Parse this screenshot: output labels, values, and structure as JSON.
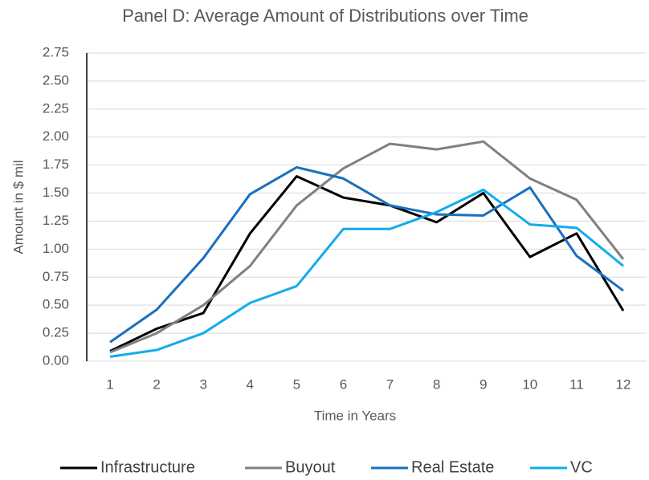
{
  "chart_data": {
    "type": "line",
    "title": "Panel D: Average Amount of Distributions over Time",
    "x_label": "Time in Years",
    "y_label": "Amount in $ mil",
    "x": [
      1,
      2,
      3,
      4,
      5,
      6,
      7,
      8,
      9,
      10,
      11,
      12
    ],
    "xlim": [
      0.5,
      12.5
    ],
    "xticks": [
      1,
      2,
      3,
      4,
      5,
      6,
      7,
      8,
      9,
      10,
      11,
      12
    ],
    "ylim": [
      0,
      2.75
    ],
    "yticks": [
      {
        "value": 0,
        "label": "0.00"
      },
      {
        "value": 0.25,
        "label": "0.25"
      },
      {
        "value": 0.5,
        "label": "0.50"
      },
      {
        "value": 0.75,
        "label": "0.75"
      },
      {
        "value": 1,
        "label": "1.00"
      },
      {
        "value": 1.25,
        "label": "1.25"
      },
      {
        "value": 1.5,
        "label": "1.50"
      },
      {
        "value": 1.75,
        "label": "1.75"
      },
      {
        "value": 2,
        "label": "2.00"
      },
      {
        "value": 2.25,
        "label": "2.25"
      },
      {
        "value": 2.5,
        "label": "2.50"
      },
      {
        "value": 2.75,
        "label": "2.75"
      }
    ],
    "grid": true,
    "legend": "bottom",
    "series": [
      {
        "name": "Infrastructure",
        "color": "#000000",
        "values": [
          0.09,
          0.29,
          0.43,
          1.14,
          1.65,
          1.46,
          1.39,
          1.24,
          1.5,
          0.93,
          1.14,
          0.45
        ]
      },
      {
        "name": "Buyout",
        "color": "#808080",
        "values": [
          0.08,
          0.25,
          0.5,
          0.85,
          1.39,
          1.72,
          1.94,
          1.89,
          1.96,
          1.63,
          1.44,
          0.91
        ]
      },
      {
        "name": "Real Estate",
        "color": "#1b6fbd",
        "values": [
          0.17,
          0.46,
          0.92,
          1.49,
          1.73,
          1.63,
          1.39,
          1.31,
          1.3,
          1.55,
          0.94,
          0.63
        ]
      },
      {
        "name": "VC",
        "color": "#12acec",
        "values": [
          0.04,
          0.1,
          0.25,
          0.52,
          0.67,
          1.18,
          1.18,
          1.33,
          1.53,
          1.22,
          1.19,
          0.85
        ]
      }
    ]
  }
}
